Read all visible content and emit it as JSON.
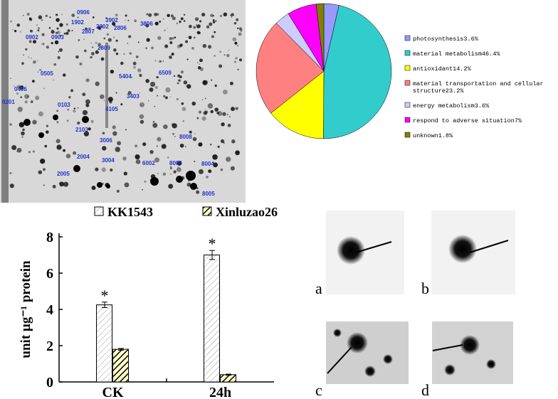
{
  "chart_data": [
    {
      "type": "pie",
      "categories": [
        "photosynthesis",
        "material metabolism",
        "antioxidant",
        "material transportation and cellular structure",
        "energy metabolism",
        "respond to adverse situation",
        "unknown"
      ],
      "values": [
        3.6,
        46.4,
        14.2,
        23.2,
        3.6,
        7,
        1.8
      ],
      "value_labels": [
        "3.6%",
        "46.4%",
        "14.2%",
        "23.2%",
        "3.6%",
        "7%",
        "1.8%"
      ],
      "colors": [
        "#9999ff",
        "#33cccc",
        "#ffff00",
        "#ff8080",
        "#ccccff",
        "#ff00ff",
        "#808000"
      ],
      "legend": "right"
    },
    {
      "type": "bar",
      "ylabel": "unit µg⁻¹ protein",
      "categories": [
        "CK",
        "24h"
      ],
      "series": [
        {
          "name": "KK1543",
          "color": "#ffffff",
          "hatch": "light",
          "values": [
            4.25,
            7.0
          ],
          "errors": [
            0.15,
            0.25
          ]
        },
        {
          "name": "Xinluzao26",
          "color": "#ffffcc",
          "hatch": "heavy",
          "values": [
            1.8,
            0.4
          ],
          "errors": [
            0.05,
            0.03
          ]
        }
      ],
      "annotations": [
        "*",
        "*"
      ],
      "ylim": [
        0,
        8
      ],
      "yticks": [
        0,
        2,
        4,
        6,
        8
      ],
      "legend": "top"
    }
  ],
  "gel": {
    "spots": [
      "0906",
      "1902",
      "0902",
      "0903",
      "2902",
      "2807",
      "3902",
      "2806",
      "3806",
      "2809",
      "0505",
      "5404",
      "6509",
      "0406",
      "3403",
      "0201",
      "0103",
      "4105",
      "2103",
      "3006",
      "8008",
      "2004",
      "3004",
      "6002",
      "8006",
      "8004",
      "2005",
      "8005"
    ]
  },
  "panels": {
    "labels": [
      "a",
      "b",
      "c",
      "d"
    ]
  }
}
